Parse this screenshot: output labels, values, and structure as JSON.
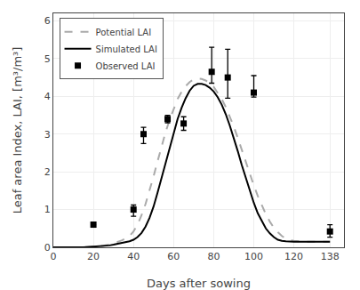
{
  "chart_data": {
    "type": "line",
    "xlabel": "Days after sowing",
    "ylabel": "Leaf area Index, LAI, [m³/m³]",
    "xlim": [
      0,
      145
    ],
    "ylim": [
      0,
      6.2
    ],
    "xticks": [
      0,
      20,
      40,
      60,
      80,
      100,
      120,
      138
    ],
    "yticks": [
      0,
      1,
      2,
      3,
      4,
      5,
      6
    ],
    "grid": true,
    "legend": "upper left",
    "series": [
      {
        "name": "Potential LAI",
        "type": "line",
        "color": "#aaaaaa",
        "line_style": "dashed",
        "x": [
          0,
          5,
          10,
          15,
          20,
          25,
          28,
          30,
          32,
          34,
          36,
          38,
          40,
          42,
          44,
          46,
          48,
          50,
          52,
          54,
          56,
          58,
          60,
          62,
          64,
          66,
          68,
          70,
          72,
          74,
          76,
          78,
          80,
          82,
          84,
          86,
          88,
          90,
          92,
          94,
          96,
          98,
          100,
          102,
          104,
          106,
          108,
          110,
          112,
          114,
          116,
          118,
          120,
          122,
          124,
          126,
          128,
          130,
          132,
          134,
          136,
          138
        ],
        "values": [
          0,
          0,
          0,
          0,
          0.02,
          0.04,
          0.07,
          0.1,
          0.14,
          0.18,
          0.23,
          0.3,
          0.42,
          0.6,
          0.85,
          1.15,
          1.5,
          1.88,
          2.28,
          2.68,
          3.05,
          3.38,
          3.68,
          3.93,
          4.12,
          4.27,
          4.38,
          4.45,
          4.47,
          4.46,
          4.42,
          4.35,
          4.25,
          4.1,
          3.93,
          3.72,
          3.48,
          3.2,
          2.9,
          2.58,
          2.26,
          1.94,
          1.64,
          1.36,
          1.1,
          0.88,
          0.68,
          0.52,
          0.4,
          0.3,
          0.23,
          0.19,
          0.17,
          0.16,
          0.15,
          0.15,
          0.15,
          0.15,
          0.15,
          0.15,
          0.15,
          0.15
        ]
      },
      {
        "name": "Simulated LAI",
        "type": "line",
        "color": "#000000",
        "line_style": "solid",
        "x": [
          0,
          5,
          10,
          15,
          20,
          25,
          28,
          30,
          32,
          34,
          36,
          38,
          40,
          42,
          44,
          46,
          48,
          50,
          52,
          54,
          56,
          58,
          60,
          62,
          64,
          66,
          68,
          70,
          72,
          74,
          76,
          78,
          80,
          82,
          84,
          86,
          88,
          90,
          92,
          94,
          96,
          98,
          100,
          102,
          104,
          106,
          108,
          110,
          112,
          114,
          116,
          118,
          120,
          122,
          124,
          126,
          128,
          130,
          132,
          134,
          136,
          138
        ],
        "values": [
          0,
          0,
          0,
          0,
          0.02,
          0.03,
          0.05,
          0.07,
          0.09,
          0.11,
          0.13,
          0.16,
          0.2,
          0.27,
          0.38,
          0.55,
          0.78,
          1.08,
          1.45,
          1.85,
          2.25,
          2.65,
          3.05,
          3.4,
          3.7,
          3.95,
          4.15,
          4.28,
          4.33,
          4.33,
          4.3,
          4.23,
          4.13,
          3.98,
          3.78,
          3.53,
          3.23,
          2.9,
          2.55,
          2.18,
          1.83,
          1.5,
          1.18,
          0.9,
          0.68,
          0.5,
          0.37,
          0.27,
          0.2,
          0.17,
          0.16,
          0.15,
          0.15,
          0.15,
          0.15,
          0.15,
          0.15,
          0.15,
          0.15,
          0.15,
          0.15,
          0.15
        ]
      },
      {
        "name": "Observed LAI",
        "type": "scatter",
        "color": "#000000",
        "marker": "square",
        "x": [
          20,
          40,
          45,
          57,
          65,
          79,
          87,
          100,
          138
        ],
        "values": [
          0.6,
          1.0,
          3.0,
          3.4,
          3.28,
          4.65,
          4.5,
          4.1,
          0.42
        ],
        "error_low": [
          0.0,
          0.18,
          0.25,
          0.1,
          0.18,
          0.3,
          0.55,
          0.12,
          0.15
        ],
        "error_high": [
          0.07,
          0.12,
          0.18,
          0.1,
          0.18,
          0.65,
          0.75,
          0.45,
          0.18
        ]
      }
    ]
  }
}
